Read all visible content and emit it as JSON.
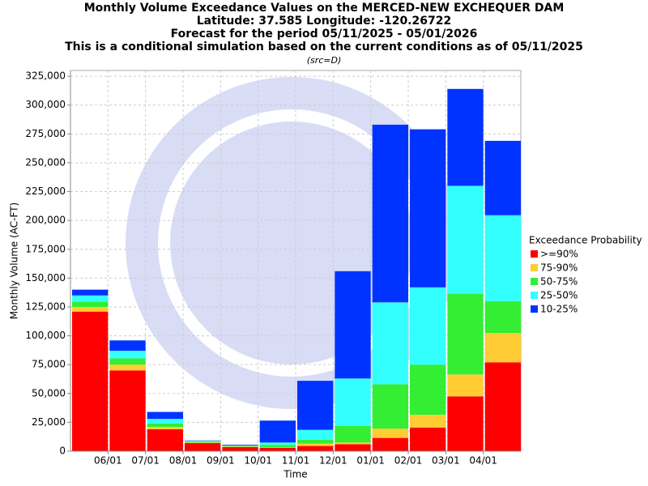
{
  "chart_data": {
    "type": "stacked-bar",
    "title": [
      "Monthly Volume Exceedance Values on the MERCED-NEW EXCHEQUER DAM",
      "Latitude: 37.585 Longitude: -120.26722",
      "Forecast for the period 05/11/2025 - 05/01/2026",
      "This is a conditional simulation based on the current conditions as of 05/11/2025"
    ],
    "subtitle": "(src=D)",
    "x_label": "Time",
    "y_label": "Monthly Volume (AC-FT)",
    "legend_title": "Exceedance Probability",
    "xticks": [
      "06/01",
      "07/01",
      "08/01",
      "09/01",
      "10/01",
      "11/01",
      "12/01",
      "01/01",
      "02/01",
      "03/01",
      "04/01"
    ],
    "ylim": [
      0,
      330000
    ],
    "yticks": [
      0,
      {
        "value": 25000,
        "label": "25,000"
      },
      {
        "value": 50000,
        "label": "50,000"
      },
      {
        "value": 75000,
        "label": "75,000"
      },
      {
        "value": 100000,
        "label": "100,000"
      },
      {
        "value": 125000,
        "label": "125,000"
      },
      {
        "value": 150000,
        "label": "150,000"
      },
      {
        "value": 175000,
        "label": "175,000"
      },
      {
        "value": 200000,
        "label": "200,000"
      },
      {
        "value": 225000,
        "label": "225,000"
      },
      {
        "value": 250000,
        "label": "250,000"
      },
      {
        "value": 275000,
        "label": "275,000"
      },
      {
        "value": 300000,
        "label": "300,000"
      },
      {
        "value": 325000,
        "label": "325,000"
      }
    ],
    "grid": true,
    "series": [
      {
        "name": ">=90%",
        "color": "#ff0000",
        "values": [
          121000,
          70000,
          19000,
          7000,
          3500,
          3000,
          4500,
          6000,
          11500,
          20500,
          47500,
          77000
        ]
      },
      {
        "name": "75-90%",
        "color": "#ffcc33",
        "values": [
          4000,
          5000,
          2000,
          500,
          500,
          500,
          2000,
          1500,
          8000,
          11000,
          19000,
          25500
        ]
      },
      {
        "name": "50-75%",
        "color": "#33ee33",
        "values": [
          4500,
          5500,
          3000,
          700,
          300,
          2000,
          3500,
          14500,
          38500,
          43500,
          70000,
          27500
        ]
      },
      {
        "name": "25-50%",
        "color": "#33ffff",
        "values": [
          5500,
          6500,
          4000,
          800,
          500,
          2000,
          8500,
          41000,
          71000,
          67000,
          93500,
          74500
        ]
      },
      {
        "name": "10-25%",
        "color": "#0033ff",
        "values": [
          5000,
          9000,
          6000,
          300,
          700,
          19000,
          42500,
          93000,
          154000,
          137000,
          84000,
          64500
        ]
      }
    ]
  }
}
